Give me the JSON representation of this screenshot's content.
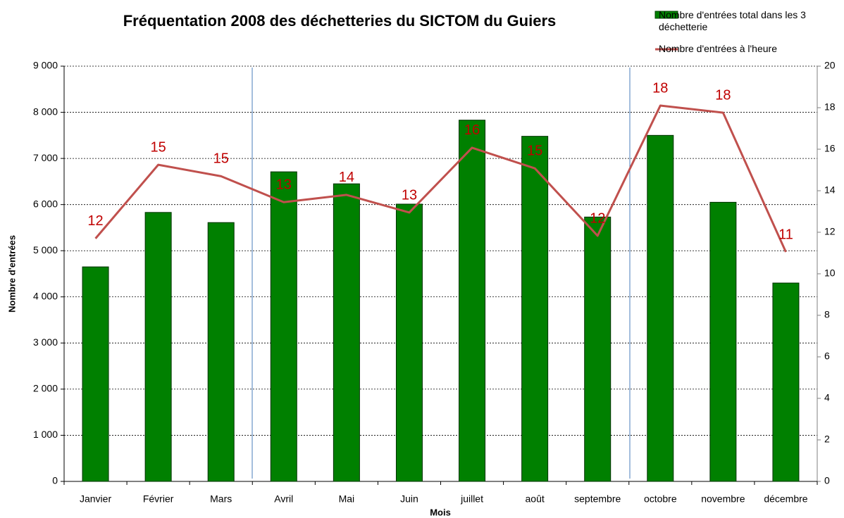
{
  "chart_data": {
    "type": "bar_line",
    "title": "Fréquentation 2008 des déchetteries du SICTOM du Guiers",
    "x_label": "Mois",
    "y_label": "Nombre d'entrées",
    "categories": [
      "Janvier",
      "Février",
      "Mars",
      "Avril",
      "Mai",
      "Juin",
      "juillet",
      "août",
      "septembre",
      "octobre",
      "novembre",
      "décembre"
    ],
    "series": [
      {
        "name": "Nombre d'entrées total dans les 3 déchetterie",
        "type": "bar",
        "color": "#008000",
        "values": [
          4650,
          5830,
          5610,
          6710,
          6450,
          6010,
          7830,
          7480,
          5730,
          7500,
          6050,
          4300
        ]
      },
      {
        "name": "Nombre d'entrées à l'heure",
        "type": "line",
        "axis": "y2",
        "color": "#c0504d",
        "values": [
          11.7,
          15.25,
          14.7,
          13.45,
          13.8,
          12.95,
          16.07,
          15.08,
          11.83,
          18.1,
          17.76,
          11.05
        ],
        "value_labels": [
          "12",
          "15",
          "15",
          "13",
          "14",
          "13",
          "16",
          "15",
          "12",
          "18",
          "18",
          "11"
        ]
      }
    ],
    "ylim": [
      0,
      9000
    ],
    "yticks": [
      0,
      {
        "value": 1000,
        "label": "1 000"
      },
      {
        "value": 2000,
        "label": "2 000"
      },
      {
        "value": 3000,
        "label": "3 000"
      },
      {
        "value": 4000,
        "label": "4 000"
      },
      {
        "value": 5000,
        "label": "5 000"
      },
      {
        "value": 6000,
        "label": "6 000"
      },
      {
        "value": 7000,
        "label": "7 000"
      },
      {
        "value": 8000,
        "label": "8 000"
      },
      {
        "value": 9000,
        "label": "9 000"
      }
    ],
    "y2lim": [
      0,
      20
    ],
    "y2ticks": [
      0,
      2,
      4,
      6,
      8,
      10,
      12,
      14,
      16,
      18,
      20
    ],
    "grid": true
  }
}
